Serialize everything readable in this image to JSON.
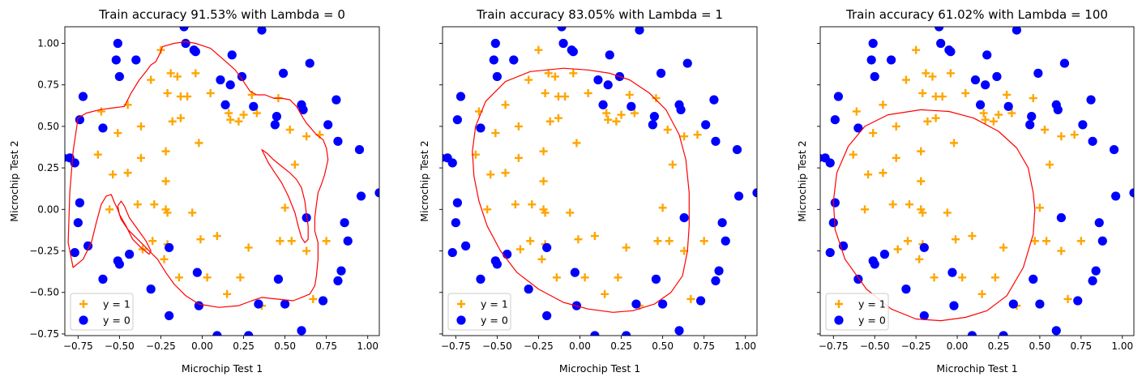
{
  "chart_data": [
    {
      "type": "scatter",
      "title": "Train accuracy 91.53% with Lambda = 0",
      "xlabel": "Microchip Test 1",
      "ylabel": "Microchip Test 2",
      "xlim": [
        -0.83,
        1.07
      ],
      "ylim": [
        -0.76,
        1.1
      ],
      "xticks": [
        -0.75,
        -0.5,
        -0.25,
        0.0,
        0.25,
        0.5,
        0.75,
        1.0
      ],
      "xtick_labels": [
        "−0.75",
        "−0.50",
        "−0.25",
        "0.00",
        "0.25",
        "0.50",
        "0.75",
        "1.00"
      ],
      "yticks": [
        -0.75,
        -0.5,
        -0.25,
        0.0,
        0.25,
        0.5,
        0.75,
        1.0
      ],
      "ytick_labels": [
        "−0.75",
        "−0.50",
        "−0.25",
        "0.00",
        "0.25",
        "0.50",
        "0.75",
        "1.00"
      ],
      "show_yticklabels": true,
      "show_ylabel": true,
      "grid": false,
      "legend_position": "lower-left",
      "boundary_color": "#ff0000",
      "boundary": [
        [
          [
            -0.04,
            1.0
          ],
          [
            0.05,
            0.97
          ],
          [
            0.12,
            0.91
          ],
          [
            0.2,
            0.84
          ],
          [
            0.25,
            0.77
          ],
          [
            0.29,
            0.71
          ],
          [
            0.33,
            0.69
          ],
          [
            0.38,
            0.69
          ],
          [
            0.43,
            0.67
          ],
          [
            0.48,
            0.67
          ],
          [
            0.53,
            0.66
          ],
          [
            0.57,
            0.62
          ],
          [
            0.61,
            0.55
          ],
          [
            0.63,
            0.52
          ],
          [
            0.69,
            0.45
          ],
          [
            0.73,
            0.42
          ],
          [
            0.75,
            0.37
          ],
          [
            0.76,
            0.3
          ],
          [
            0.74,
            0.21
          ],
          [
            0.72,
            0.15
          ],
          [
            0.7,
            0.1
          ],
          [
            0.69,
            0.03
          ],
          [
            0.68,
            -0.05
          ],
          [
            0.68,
            -0.13
          ],
          [
            0.7,
            -0.2
          ],
          [
            0.7,
            -0.3
          ],
          [
            0.69,
            -0.4
          ],
          [
            0.68,
            -0.46
          ],
          [
            0.65,
            -0.51
          ],
          [
            0.6,
            -0.53
          ],
          [
            0.55,
            -0.55
          ],
          [
            0.45,
            -0.54
          ],
          [
            0.36,
            -0.53
          ],
          [
            0.3,
            -0.55
          ],
          [
            0.22,
            -0.58
          ],
          [
            0.1,
            -0.59
          ],
          [
            -0.02,
            -0.57
          ],
          [
            -0.1,
            -0.52
          ],
          [
            -0.17,
            -0.45
          ],
          [
            -0.22,
            -0.38
          ],
          [
            -0.27,
            -0.3
          ],
          [
            -0.34,
            -0.23
          ],
          [
            -0.4,
            -0.17
          ],
          [
            -0.45,
            -0.12
          ],
          [
            -0.49,
            -0.06
          ],
          [
            -0.51,
            0.0
          ],
          [
            -0.53,
            0.04
          ],
          [
            -0.55,
            0.09
          ],
          [
            -0.58,
            0.08
          ],
          [
            -0.61,
            0.03
          ],
          [
            -0.64,
            -0.08
          ],
          [
            -0.67,
            -0.2
          ],
          [
            -0.72,
            -0.3
          ],
          [
            -0.78,
            -0.35
          ],
          [
            -0.81,
            -0.2
          ],
          [
            -0.8,
            0.1
          ],
          [
            -0.78,
            0.35
          ],
          [
            -0.75,
            0.55
          ],
          [
            -0.7,
            0.58
          ],
          [
            -0.62,
            0.6
          ],
          [
            -0.55,
            0.61
          ],
          [
            -0.47,
            0.62
          ],
          [
            -0.43,
            0.7
          ],
          [
            -0.38,
            0.78
          ],
          [
            -0.34,
            0.83
          ],
          [
            -0.31,
            0.87
          ],
          [
            -0.28,
            0.89
          ],
          [
            -0.26,
            0.93
          ],
          [
            -0.24,
            0.98
          ],
          [
            -0.17,
            1.0
          ],
          [
            -0.1,
            1.01
          ],
          [
            -0.04,
            1.0
          ]
        ],
        [
          [
            -0.5,
            -0.03
          ],
          [
            -0.46,
            -0.1
          ],
          [
            -0.42,
            -0.18
          ],
          [
            -0.37,
            -0.23
          ],
          [
            -0.32,
            -0.27
          ],
          [
            -0.31,
            -0.25
          ],
          [
            -0.34,
            -0.19
          ],
          [
            -0.39,
            -0.12
          ],
          [
            -0.44,
            -0.05
          ],
          [
            -0.47,
            0.02
          ],
          [
            -0.49,
            0.05
          ],
          [
            -0.51,
            0.02
          ],
          [
            -0.5,
            -0.03
          ]
        ],
        [
          [
            0.36,
            0.36
          ],
          [
            0.38,
            0.32
          ],
          [
            0.4,
            0.28
          ],
          [
            0.44,
            0.22
          ],
          [
            0.48,
            0.16
          ],
          [
            0.52,
            0.08
          ],
          [
            0.56,
            -0.02
          ],
          [
            0.58,
            -0.1
          ],
          [
            0.6,
            -0.17
          ],
          [
            0.62,
            -0.2
          ],
          [
            0.64,
            -0.18
          ],
          [
            0.64,
            -0.1
          ],
          [
            0.63,
            -0.03
          ],
          [
            0.62,
            0.05
          ],
          [
            0.6,
            0.13
          ],
          [
            0.57,
            0.18
          ],
          [
            0.53,
            0.22
          ],
          [
            0.48,
            0.26
          ],
          [
            0.43,
            0.3
          ],
          [
            0.39,
            0.34
          ],
          [
            0.36,
            0.36
          ]
        ]
      ],
      "legend": [
        {
          "label": "y = 1",
          "marker": "plus",
          "color": "#ffa500"
        },
        {
          "label": "y = 0",
          "marker": "circle",
          "color": "#0000ff"
        }
      ]
    },
    {
      "type": "scatter",
      "title": "Train accuracy 83.05% with Lambda = 1",
      "xlabel": "Microchip Test 1",
      "ylabel": "Microchip Test 2",
      "xlim": [
        -0.83,
        1.07
      ],
      "ylim": [
        -0.76,
        1.1
      ],
      "xticks": [
        -0.75,
        -0.5,
        -0.25,
        0.0,
        0.25,
        0.5,
        0.75,
        1.0
      ],
      "xtick_labels": [
        "−0.75",
        "−0.50",
        "−0.25",
        "0.00",
        "0.25",
        "0.50",
        "0.75",
        "1.00"
      ],
      "yticks": [
        -0.75,
        -0.5,
        -0.25,
        0.0,
        0.25,
        0.5,
        0.75,
        1.0
      ],
      "show_yticklabels": false,
      "show_ylabel": true,
      "grid": false,
      "legend_position": "lower-left",
      "boundary_color": "#ff0000",
      "boundary": [
        [
          [
            -0.1,
            0.85
          ],
          [
            0.05,
            0.84
          ],
          [
            0.18,
            0.82
          ],
          [
            0.3,
            0.78
          ],
          [
            0.42,
            0.7
          ],
          [
            0.52,
            0.6
          ],
          [
            0.6,
            0.45
          ],
          [
            0.64,
            0.3
          ],
          [
            0.66,
            0.1
          ],
          [
            0.66,
            -0.1
          ],
          [
            0.65,
            -0.25
          ],
          [
            0.62,
            -0.4
          ],
          [
            0.55,
            -0.5
          ],
          [
            0.45,
            -0.57
          ],
          [
            0.32,
            -0.61
          ],
          [
            0.2,
            -0.62
          ],
          [
            0.05,
            -0.6
          ],
          [
            -0.1,
            -0.56
          ],
          [
            -0.25,
            -0.48
          ],
          [
            -0.38,
            -0.38
          ],
          [
            -0.48,
            -0.25
          ],
          [
            -0.56,
            -0.1
          ],
          [
            -0.61,
            0.05
          ],
          [
            -0.64,
            0.2
          ],
          [
            -0.65,
            0.35
          ],
          [
            -0.63,
            0.5
          ],
          [
            -0.57,
            0.65
          ],
          [
            -0.45,
            0.77
          ],
          [
            -0.3,
            0.83
          ],
          [
            -0.1,
            0.85
          ]
        ]
      ],
      "legend": [
        {
          "label": "y = 1",
          "marker": "plus",
          "color": "#ffa500"
        },
        {
          "label": "y = 0",
          "marker": "circle",
          "color": "#0000ff"
        }
      ]
    },
    {
      "type": "scatter",
      "title": "Train accuracy 61.02% with Lambda = 100",
      "xlabel": "Microchip Test 1",
      "ylabel": "Microchip Test 2",
      "xlim": [
        -0.83,
        1.07
      ],
      "ylim": [
        -0.76,
        1.1
      ],
      "xticks": [
        -0.75,
        -0.5,
        -0.25,
        0.0,
        0.25,
        0.5,
        0.75,
        1.0
      ],
      "xtick_labels": [
        "−0.75",
        "−0.50",
        "−0.25",
        "0.00",
        "0.25",
        "0.50",
        "0.75",
        "1.00"
      ],
      "yticks": [
        -0.75,
        -0.5,
        -0.25,
        0.0,
        0.25,
        0.5,
        0.75,
        1.0
      ],
      "show_yticklabels": false,
      "show_ylabel": true,
      "grid": false,
      "legend_position": "lower-left",
      "boundary_color": "#ff0000",
      "boundary": [
        [
          [
            -0.22,
            0.6
          ],
          [
            -0.05,
            0.59
          ],
          [
            0.1,
            0.55
          ],
          [
            0.25,
            0.47
          ],
          [
            0.36,
            0.37
          ],
          [
            0.43,
            0.25
          ],
          [
            0.46,
            0.1
          ],
          [
            0.47,
            0.0
          ],
          [
            0.46,
            -0.15
          ],
          [
            0.4,
            -0.35
          ],
          [
            0.3,
            -0.52
          ],
          [
            0.18,
            -0.61
          ],
          [
            0.05,
            -0.65
          ],
          [
            -0.1,
            -0.67
          ],
          [
            -0.25,
            -0.66
          ],
          [
            -0.4,
            -0.6
          ],
          [
            -0.55,
            -0.48
          ],
          [
            -0.68,
            -0.3
          ],
          [
            -0.74,
            -0.12
          ],
          [
            -0.75,
            0.05
          ],
          [
            -0.73,
            0.22
          ],
          [
            -0.66,
            0.38
          ],
          [
            -0.56,
            0.5
          ],
          [
            -0.42,
            0.57
          ],
          [
            -0.22,
            0.6
          ]
        ]
      ],
      "legend": [
        {
          "label": "y = 1",
          "marker": "plus",
          "color": "#ffa500"
        },
        {
          "label": "y = 0",
          "marker": "circle",
          "color": "#0000ff"
        }
      ]
    }
  ],
  "points_y1": [
    [
      0.05,
      0.7
    ],
    [
      -0.09,
      0.68
    ],
    [
      -0.21,
      0.7
    ],
    [
      -0.25,
      0.96
    ],
    [
      -0.31,
      0.78
    ],
    [
      -0.15,
      0.8
    ],
    [
      -0.13,
      0.68
    ],
    [
      -0.18,
      0.53
    ],
    [
      -0.13,
      0.55
    ],
    [
      -0.37,
      0.5
    ],
    [
      -0.51,
      0.46
    ],
    [
      -0.45,
      0.63
    ],
    [
      -0.61,
      0.59
    ],
    [
      -0.63,
      0.33
    ],
    [
      -0.54,
      0.21
    ],
    [
      -0.45,
      0.22
    ],
    [
      -0.37,
      0.31
    ],
    [
      -0.22,
      0.35
    ],
    [
      -0.02,
      0.4
    ],
    [
      -0.22,
      0.17
    ],
    [
      -0.39,
      0.03
    ],
    [
      -0.29,
      0.03
    ],
    [
      -0.21,
      -0.02
    ],
    [
      -0.3,
      -0.19
    ],
    [
      -0.21,
      -0.21
    ],
    [
      -0.36,
      -0.24
    ],
    [
      -0.56,
      0.0
    ],
    [
      -0.06,
      -0.02
    ],
    [
      -0.23,
      -0.3
    ],
    [
      -0.14,
      -0.41
    ],
    [
      0.03,
      -0.41
    ],
    [
      -0.01,
      -0.18
    ],
    [
      0.09,
      -0.16
    ],
    [
      0.23,
      -0.41
    ],
    [
      0.28,
      -0.23
    ],
    [
      0.36,
      -0.58
    ],
    [
      0.15,
      -0.51
    ],
    [
      0.47,
      -0.19
    ],
    [
      0.54,
      -0.19
    ],
    [
      0.75,
      -0.19
    ],
    [
      0.63,
      -0.25
    ],
    [
      0.67,
      -0.54
    ],
    [
      0.5,
      0.01
    ],
    [
      0.46,
      0.67
    ],
    [
      0.63,
      0.44
    ],
    [
      0.71,
      0.45
    ],
    [
      0.53,
      0.48
    ],
    [
      0.56,
      0.27
    ],
    [
      0.3,
      0.69
    ],
    [
      0.33,
      0.58
    ],
    [
      0.22,
      0.53
    ],
    [
      0.16,
      0.58
    ],
    [
      0.17,
      0.54
    ],
    [
      -0.04,
      0.82
    ],
    [
      0.25,
      0.57
    ],
    [
      -0.22,
      0.0
    ],
    [
      -0.19,
      0.82
    ]
  ],
  "points_y0": [
    [
      -0.51,
      1.0
    ],
    [
      -0.52,
      0.9
    ],
    [
      -0.4,
      0.9
    ],
    [
      -0.5,
      0.8
    ],
    [
      -0.72,
      0.68
    ],
    [
      -0.74,
      0.54
    ],
    [
      -0.6,
      0.49
    ],
    [
      -0.8,
      0.31
    ],
    [
      -0.77,
      0.28
    ],
    [
      -0.74,
      0.04
    ],
    [
      -0.75,
      -0.08
    ],
    [
      -0.69,
      -0.22
    ],
    [
      -0.77,
      -0.26
    ],
    [
      -0.6,
      -0.42
    ],
    [
      -0.51,
      -0.31
    ],
    [
      -0.44,
      -0.27
    ],
    [
      -0.31,
      -0.48
    ],
    [
      -0.2,
      -0.64
    ],
    [
      -0.02,
      -0.58
    ],
    [
      0.09,
      -0.76
    ],
    [
      0.28,
      -0.76
    ],
    [
      0.34,
      -0.57
    ],
    [
      0.46,
      -0.42
    ],
    [
      0.6,
      -0.73
    ],
    [
      0.84,
      -0.37
    ],
    [
      0.88,
      -0.19
    ],
    [
      0.86,
      -0.08
    ],
    [
      0.96,
      0.08
    ],
    [
      1.07,
      0.1
    ],
    [
      0.95,
      0.36
    ],
    [
      0.82,
      0.41
    ],
    [
      0.81,
      0.66
    ],
    [
      0.65,
      0.88
    ],
    [
      0.6,
      0.63
    ],
    [
      0.49,
      0.82
    ],
    [
      0.36,
      1.08
    ],
    [
      0.24,
      0.8
    ],
    [
      0.31,
      0.62
    ],
    [
      0.18,
      0.93
    ],
    [
      0.11,
      0.78
    ],
    [
      -0.05,
      0.96
    ],
    [
      -0.04,
      0.95
    ],
    [
      -0.11,
      1.1
    ],
    [
      0.17,
      0.75
    ],
    [
      0.44,
      0.51
    ],
    [
      0.61,
      0.6
    ],
    [
      0.76,
      0.51
    ],
    [
      0.63,
      -0.05
    ],
    [
      0.82,
      -0.43
    ],
    [
      0.73,
      -0.55
    ],
    [
      0.5,
      -0.57
    ],
    [
      0.45,
      0.56
    ],
    [
      -0.5,
      -0.33
    ],
    [
      -0.2,
      -0.23
    ],
    [
      -0.03,
      -0.38
    ],
    [
      -0.1,
      1.0
    ],
    [
      0.14,
      0.63
    ],
    [
      -0.84,
      0.31
    ]
  ]
}
